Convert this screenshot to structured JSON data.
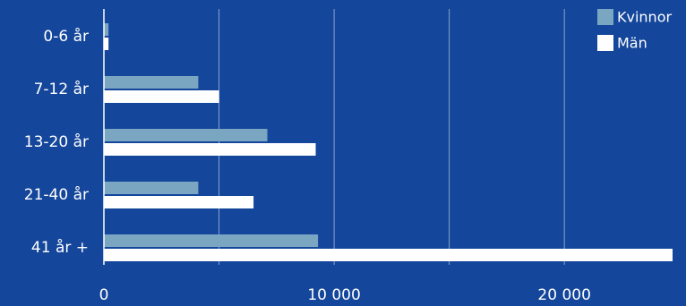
{
  "chart_data": {
    "type": "bar",
    "orientation": "horizontal",
    "categories": [
      "0-6 år",
      "7-12 år",
      "13-20 år",
      "21-40 år",
      "41 år +"
    ],
    "series": [
      {
        "name": "Kvinnor",
        "color": "#7aa6c2",
        "values": [
          200,
          4100,
          7100,
          4100,
          9300
        ]
      },
      {
        "name": "Män",
        "color": "#ffffff",
        "values": [
          200,
          5000,
          9200,
          6500,
          24700
        ]
      }
    ],
    "xlim": [
      0,
      24700
    ],
    "xticks": [
      {
        "value": 0,
        "label": "0"
      },
      {
        "value": 10000,
        "label": "10 000"
      },
      {
        "value": 20000,
        "label": "20 000"
      }
    ],
    "gridlines": [
      5000,
      10000,
      15000,
      20000
    ],
    "grid": true,
    "legend_position": "top-right",
    "colors": {
      "background": "#14469b",
      "grid": "#8aa3cf",
      "text": "#ffffff"
    }
  }
}
